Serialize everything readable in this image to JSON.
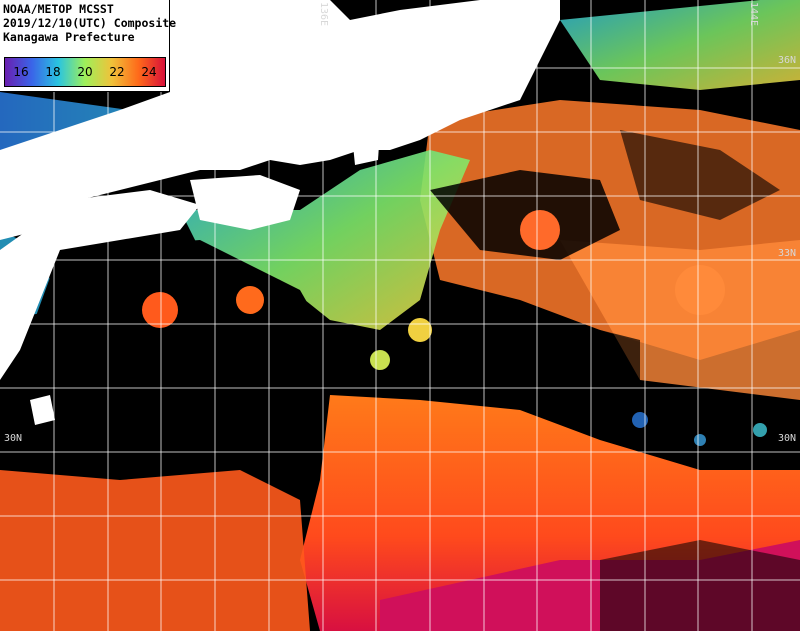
{
  "header": {
    "line1": "NOAA/METOP MCSST",
    "line2": "2019/12/10(UTC) Composite",
    "line3": "Kanagawa Prefecture"
  },
  "legend": {
    "labels": [
      "16",
      "18",
      "20",
      "22",
      "24"
    ],
    "colors": [
      "#6a1fb0",
      "#3a64e8",
      "#2ac4e0",
      "#9ef05a",
      "#f0c23a",
      "#ff6a1a",
      "#d8103a"
    ]
  },
  "grid_labels": {
    "lon_top_1": "136E",
    "lon_top_2": "144E",
    "lat_right_36": "36N",
    "lat_right_33": "33N",
    "lat_right_30": "30N",
    "lat_left_30": "30N"
  },
  "colors": {
    "land": "#ffffff",
    "no_data": "#000000",
    "grid": "#ffffff"
  }
}
